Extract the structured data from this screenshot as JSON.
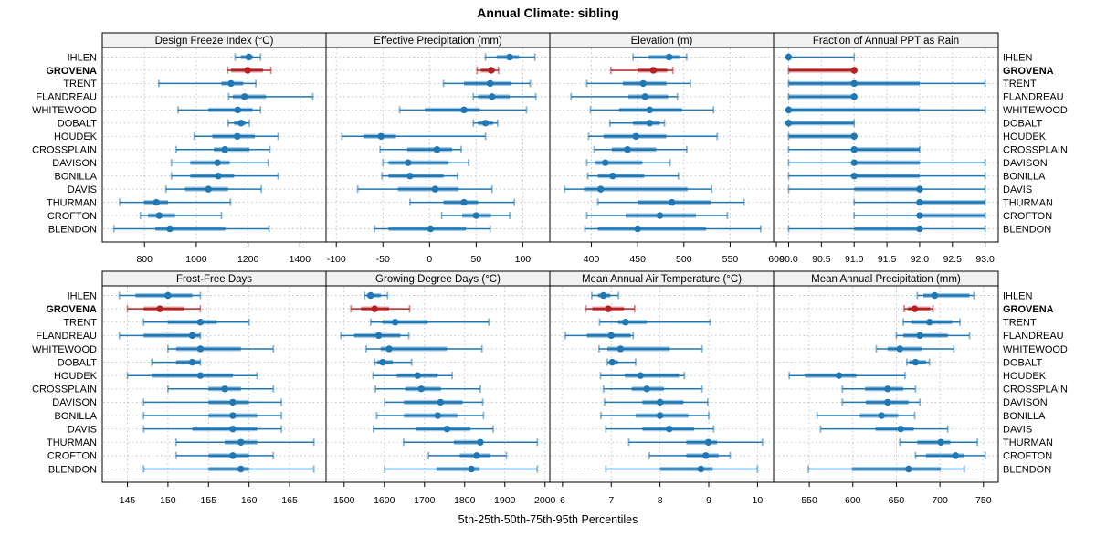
{
  "chart_data": {
    "type": "dot-interval",
    "title": "Annual Climate: sibling",
    "xlabel": "5th-25th-50th-75th-95th Percentiles",
    "legend_note": "percentile whisker plot: thin line 5th-95th, thick band 25th-75th, dot 50th",
    "categories": [
      "IHLEN",
      "GROVENA",
      "TRENT",
      "FLANDREAU",
      "WHITEWOOD",
      "DOBALT",
      "HOUDEK",
      "CROSSPLAIN",
      "DAVISON",
      "BONILLA",
      "DAVIS",
      "THURMAN",
      "CROFTON",
      "BLENDON"
    ],
    "highlight": "GROVENA",
    "colors": {
      "series": "#1f77b4",
      "highlight": "#b22222",
      "grid": "#bfbfbf",
      "header_bg": "#f1f1f1",
      "border": "#000000",
      "text": "#000000"
    },
    "panels": [
      {
        "title": "Design Freeze Index (°C)",
        "domain": [
          637,
          1501
        ],
        "ticks": [
          800,
          1000,
          1200,
          1400
        ],
        "tick_labels": [
          "800",
          "1000",
          "1200",
          "1400"
        ],
        "values": [
          [
            1150,
            1172,
            1203,
            1218,
            1248
          ],
          [
            1121,
            1134,
            1198,
            1257,
            1288
          ],
          [
            855,
            1097,
            1134,
            1181,
            1230
          ],
          [
            1125,
            1141,
            1186,
            1269,
            1450
          ],
          [
            930,
            1047,
            1160,
            1217,
            1248
          ],
          [
            1123,
            1146,
            1173,
            1191,
            1205
          ],
          [
            992,
            1062,
            1158,
            1226,
            1316
          ],
          [
            922,
            1068,
            1110,
            1205,
            1284
          ],
          [
            904,
            977,
            1082,
            1129,
            1278
          ],
          [
            904,
            977,
            1085,
            1146,
            1316
          ],
          [
            883,
            956,
            1047,
            1123,
            1251
          ],
          [
            704,
            798,
            846,
            891,
            1132
          ],
          [
            784,
            813,
            857,
            918,
            1097
          ],
          [
            682,
            842,
            898,
            1112,
            1281
          ]
        ]
      },
      {
        "title": "Effective Precipitation (mm)",
        "domain": [
          -111,
          129
        ],
        "ticks": [
          -100,
          -50,
          0,
          50,
          100
        ],
        "tick_labels": [
          "-100",
          "-50",
          "0",
          "50",
          "100"
        ],
        "values": [
          [
            60,
            72,
            86,
            96,
            113
          ],
          [
            51,
            55,
            66,
            70,
            74
          ],
          [
            15,
            37,
            65,
            88,
            108
          ],
          [
            47,
            52,
            67,
            86,
            114
          ],
          [
            -32,
            -5,
            37,
            54,
            104
          ],
          [
            47,
            52,
            60,
            68,
            73
          ],
          [
            -94,
            -71,
            -52,
            -36,
            60
          ],
          [
            -53,
            -24,
            8,
            24,
            34
          ],
          [
            -50,
            -44,
            -23,
            20,
            42
          ],
          [
            -51,
            -44,
            -21,
            15,
            30
          ],
          [
            -77,
            -34,
            6,
            31,
            67
          ],
          [
            -21,
            15,
            37,
            52,
            91
          ],
          [
            13,
            35,
            50,
            66,
            86
          ],
          [
            -59,
            -44,
            1,
            39,
            65
          ]
        ]
      },
      {
        "title": "Elevation (m)",
        "domain": [
          355,
          597
        ],
        "ticks": [
          400,
          450,
          500,
          550,
          600
        ],
        "tick_labels": [
          "400",
          "450",
          "500",
          "550",
          "600"
        ],
        "values": [
          [
            445,
            462,
            484,
            495,
            503
          ],
          [
            421,
            450,
            467,
            482,
            488
          ],
          [
            395,
            434,
            456,
            481,
            507
          ],
          [
            378,
            440,
            458,
            483,
            493
          ],
          [
            399,
            430,
            463,
            498,
            532
          ],
          [
            420,
            445,
            463,
            474,
            479
          ],
          [
            397,
            413,
            448,
            481,
            536
          ],
          [
            403,
            422,
            439,
            470,
            503
          ],
          [
            395,
            404,
            415,
            455,
            485
          ],
          [
            396,
            407,
            423,
            457,
            494
          ],
          [
            371,
            392,
            410,
            504,
            530
          ],
          [
            407,
            450,
            487,
            529,
            565
          ],
          [
            395,
            437,
            474,
            513,
            547
          ],
          [
            393,
            407,
            450,
            524,
            583
          ]
        ]
      },
      {
        "title": "Fraction of Annual PPT as Rain",
        "domain": [
          89.77,
          93.2
        ],
        "ticks": [
          90,
          90.5,
          91,
          91.5,
          92,
          92.5,
          93
        ],
        "tick_labels": [
          "90.0",
          "90.5",
          "91.0",
          "91.5",
          "92.0",
          "92.5",
          "93.0"
        ],
        "values": [
          [
            90,
            90,
            90,
            90,
            91
          ],
          [
            90,
            90,
            91,
            91,
            91
          ],
          [
            90,
            90,
            91,
            92,
            93
          ],
          [
            90,
            90,
            91,
            91,
            91
          ],
          [
            90,
            90,
            90,
            92,
            93
          ],
          [
            90,
            90,
            90,
            91,
            91
          ],
          [
            90,
            90,
            91,
            91,
            91
          ],
          [
            90,
            91,
            91,
            92,
            92
          ],
          [
            90,
            91,
            91,
            92,
            93
          ],
          [
            90,
            91,
            91,
            92,
            93
          ],
          [
            90,
            91,
            92,
            92,
            93
          ],
          [
            91,
            92,
            92,
            93,
            93
          ],
          [
            91,
            92,
            92,
            93,
            93
          ],
          [
            90,
            91,
            92,
            92,
            93
          ]
        ]
      },
      {
        "title": "Frost-Free Days",
        "domain": [
          141.9,
          169.5
        ],
        "ticks": [
          145,
          150,
          155,
          160,
          165
        ],
        "tick_labels": [
          "145",
          "150",
          "155",
          "160",
          "165"
        ],
        "values": [
          [
            144,
            146,
            150,
            153,
            154
          ],
          [
            145,
            147,
            149,
            152,
            154
          ],
          [
            147,
            150,
            154,
            156,
            160
          ],
          [
            144,
            147,
            153,
            154,
            154
          ],
          [
            150,
            151,
            154,
            159,
            163
          ],
          [
            148,
            151,
            153,
            154,
            154
          ],
          [
            145,
            148,
            154,
            158,
            161
          ],
          [
            150,
            155,
            157,
            159,
            163
          ],
          [
            147,
            155,
            158,
            160,
            164
          ],
          [
            147,
            155,
            158,
            161,
            164
          ],
          [
            147,
            153,
            158,
            161,
            164
          ],
          [
            151,
            157,
            159,
            161,
            168
          ],
          [
            151,
            155,
            158,
            160,
            163
          ],
          [
            147,
            155,
            159,
            160,
            168
          ]
        ]
      },
      {
        "title": "Growing Degree Days (°C)",
        "domain": [
          1455,
          2012
        ],
        "ticks": [
          1500,
          1600,
          1700,
          1800,
          1900,
          2000
        ],
        "tick_labels": [
          "1500",
          "1600",
          "1700",
          "1800",
          "1900",
          "2000"
        ],
        "values": [
          [
            1551,
            1557,
            1566,
            1591,
            1608
          ],
          [
            1517,
            1542,
            1576,
            1612,
            1663
          ],
          [
            1566,
            1595,
            1627,
            1708,
            1860
          ],
          [
            1492,
            1525,
            1586,
            1640,
            1661
          ],
          [
            1555,
            1591,
            1612,
            1756,
            1843
          ],
          [
            1576,
            1583,
            1596,
            1621,
            1668
          ],
          [
            1572,
            1631,
            1683,
            1733,
            1769
          ],
          [
            1578,
            1652,
            1692,
            1741,
            1839
          ],
          [
            1601,
            1649,
            1740,
            1795,
            1845
          ],
          [
            1581,
            1649,
            1733,
            1782,
            1847
          ],
          [
            1573,
            1680,
            1756,
            1814,
            1871
          ],
          [
            1648,
            1773,
            1839,
            1846,
            1981
          ],
          [
            1710,
            1788,
            1830,
            1864,
            1904
          ],
          [
            1601,
            1730,
            1817,
            1837,
            1981
          ]
        ]
      },
      {
        "title": "Mean Annual Air Temperature (°C)",
        "domain": [
          5.74,
          10.33
        ],
        "ticks": [
          6,
          7,
          8,
          9,
          10
        ],
        "tick_labels": [
          "6",
          "7",
          "8",
          "9",
          "10"
        ],
        "values": [
          [
            6.6,
            6.73,
            6.84,
            6.98,
            7.15
          ],
          [
            6.48,
            6.61,
            6.94,
            7.26,
            7.48
          ],
          [
            6.76,
            7.14,
            7.29,
            7.73,
            9.03
          ],
          [
            6.06,
            6.5,
            7.0,
            7.4,
            7.45
          ],
          [
            6.75,
            6.92,
            7.19,
            8.2,
            8.86
          ],
          [
            6.92,
            6.95,
            7.02,
            7.14,
            7.5
          ],
          [
            6.78,
            7.28,
            7.6,
            8.39,
            8.5
          ],
          [
            6.84,
            7.42,
            7.73,
            8.08,
            8.86
          ],
          [
            6.86,
            7.64,
            8.0,
            8.48,
            8.98
          ],
          [
            6.79,
            7.5,
            8.0,
            8.58,
            9.0
          ],
          [
            6.89,
            7.64,
            8.19,
            8.7,
            9.1
          ],
          [
            7.36,
            8.54,
            8.99,
            9.17,
            10.1
          ],
          [
            7.78,
            8.54,
            8.94,
            9.2,
            9.44
          ],
          [
            6.89,
            8.0,
            8.84,
            9.08,
            10.0
          ]
        ]
      },
      {
        "title": "Mean Annual Precipitation (mm)",
        "domain": [
          509,
          767
        ],
        "ticks": [
          550,
          600,
          650,
          700,
          750
        ],
        "tick_labels": [
          "550",
          "600",
          "650",
          "700",
          "750"
        ],
        "values": [
          [
            674,
            681,
            694,
            734,
            739
          ],
          [
            659,
            663,
            671,
            689,
            692
          ],
          [
            658,
            667,
            688,
            714,
            723
          ],
          [
            650,
            658,
            677,
            709,
            734
          ],
          [
            627,
            640,
            654,
            679,
            716
          ],
          [
            662,
            665,
            672,
            684,
            688
          ],
          [
            527,
            545,
            584,
            604,
            660
          ],
          [
            588,
            614,
            640,
            658,
            672
          ],
          [
            588,
            615,
            640,
            664,
            677
          ],
          [
            559,
            608,
            633,
            652,
            671
          ],
          [
            563,
            626,
            655,
            670,
            709
          ],
          [
            654,
            674,
            701,
            712,
            743
          ],
          [
            672,
            684,
            718,
            728,
            752
          ],
          [
            549,
            599,
            664,
            701,
            728
          ]
        ]
      }
    ]
  }
}
